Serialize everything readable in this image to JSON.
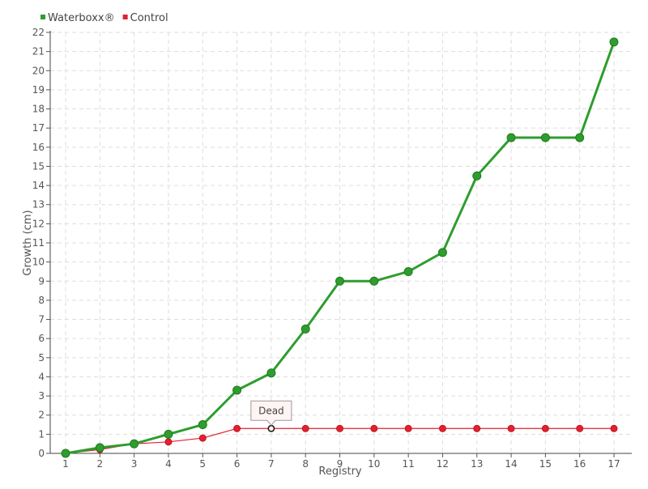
{
  "chart_data": {
    "type": "line",
    "title": "",
    "xlabel": "Registry",
    "ylabel": "Growth (cm)",
    "categories": [
      "1",
      "2",
      "3",
      "4",
      "5",
      "6",
      "7",
      "8",
      "9",
      "10",
      "11",
      "12",
      "13",
      "14",
      "15",
      "16",
      "17"
    ],
    "ylim": [
      0,
      22
    ],
    "yticks": [
      0,
      1,
      2,
      3,
      4,
      5,
      6,
      7,
      8,
      9,
      10,
      11,
      12,
      13,
      14,
      15,
      16,
      17,
      18,
      19,
      20,
      21,
      22
    ],
    "grid": true,
    "legend_position": "top-left",
    "series": [
      {
        "name": "Waterboxx®",
        "color": "#2e9d2e",
        "values": [
          0,
          0.3,
          0.5,
          1,
          1.5,
          3.3,
          4.2,
          6.5,
          9,
          9,
          9.5,
          10.5,
          14.5,
          16.5,
          16.5,
          16.5,
          21.5
        ]
      },
      {
        "name": "Control",
        "color": "#e2202f",
        "values": [
          0,
          0.2,
          0.5,
          0.6,
          0.8,
          1.3,
          1.3,
          1.3,
          1.3,
          1.3,
          1.3,
          1.3,
          1.3,
          1.3,
          1.3,
          1.3,
          1.3
        ]
      }
    ],
    "annotations": [
      {
        "series": 1,
        "index": 6,
        "text": "Dead"
      }
    ]
  }
}
